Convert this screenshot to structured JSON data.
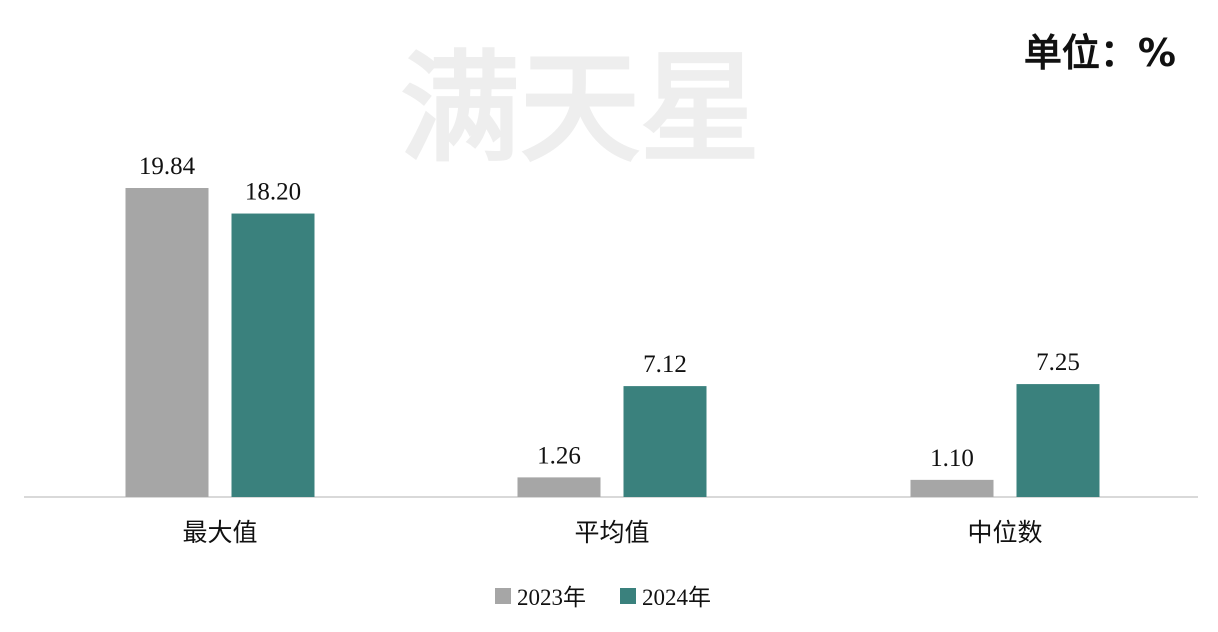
{
  "unit_label": "单位：%",
  "watermark": "满天星",
  "chart_data": {
    "type": "bar",
    "categories": [
      "最大值",
      "平均值",
      "中位数"
    ],
    "series": [
      {
        "name": "2023年",
        "values": [
          19.84,
          1.26,
          1.1
        ],
        "color": "#a6a6a6"
      },
      {
        "name": "2024年",
        "values": [
          18.2,
          7.12,
          7.25
        ],
        "color": "#3a817d"
      }
    ],
    "data_labels": [
      [
        "19.84",
        "1.26",
        "1.10"
      ],
      [
        "18.20",
        "7.12",
        "7.25"
      ]
    ],
    "ylim": [
      0,
      20
    ],
    "grid": false,
    "legend_position": "bottom",
    "axis_color": "#d9d9d9"
  }
}
